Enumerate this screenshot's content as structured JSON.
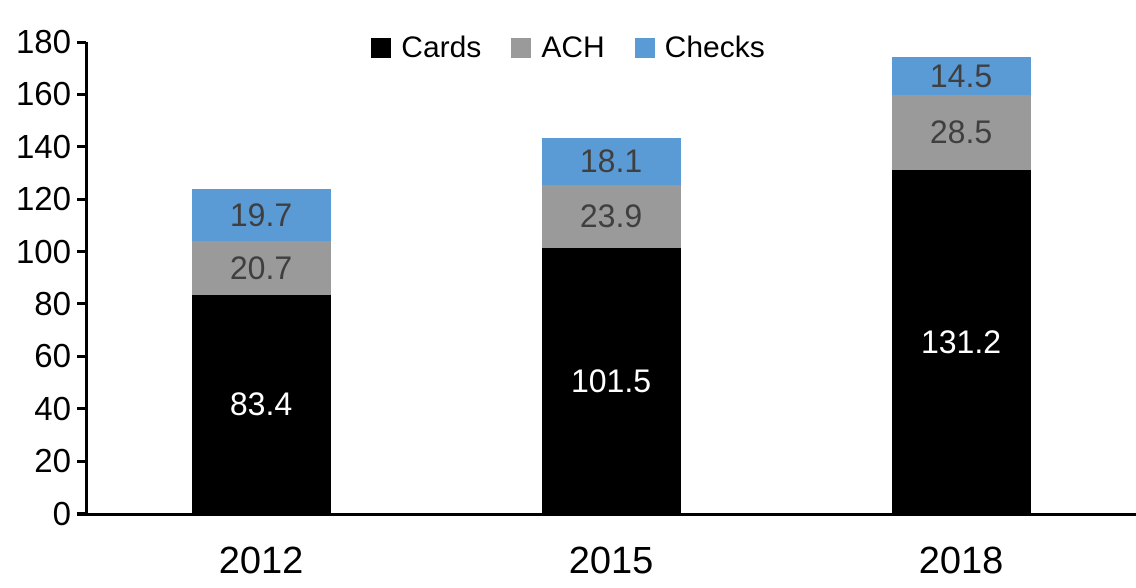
{
  "chart_data": {
    "type": "bar",
    "stacked": true,
    "title": "",
    "xlabel": "",
    "ylabel": "",
    "categories": [
      "2012",
      "2015",
      "2018"
    ],
    "series": [
      {
        "name": "Cards",
        "color": "#000000",
        "label_color": "#FFFFFF",
        "values": [
          83.4,
          101.5,
          131.2
        ]
      },
      {
        "name": "ACH",
        "color": "#9A9A9A",
        "label_color": "#3F3F3F",
        "values": [
          20.7,
          23.9,
          28.5
        ]
      },
      {
        "name": "Checks",
        "color": "#5B9BD5",
        "label_color": "#3F3F3F",
        "values": [
          19.7,
          18.1,
          14.5
        ]
      }
    ],
    "ylim": [
      0,
      180
    ],
    "yticks": [
      0,
      20,
      40,
      60,
      80,
      100,
      120,
      140,
      160,
      180
    ],
    "legend_position": "top-center",
    "grid": false,
    "value_labels_shown": true,
    "axis_color": "#000000",
    "background_color": "#FFFFFF"
  }
}
